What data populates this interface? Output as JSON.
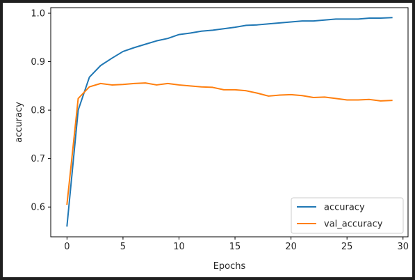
{
  "chart_data": {
    "type": "line",
    "xlabel": "Epochs",
    "ylabel": "accuracy",
    "xlim": [
      -1.45,
      30.45
    ],
    "ylim": [
      0.5385,
      1.0115
    ],
    "xticks": [
      0,
      5,
      10,
      15,
      20,
      25,
      30
    ],
    "yticks": [
      0.6,
      0.7,
      0.8,
      0.9,
      1.0
    ],
    "xtick_labels": [
      "0",
      "5",
      "10",
      "15",
      "20",
      "25",
      "30"
    ],
    "ytick_labels": [
      "0.6",
      "0.7",
      "0.8",
      "0.9",
      "1.0"
    ],
    "grid": false,
    "legend": "lower-right",
    "x": [
      0,
      1,
      2,
      3,
      4,
      5,
      6,
      7,
      8,
      9,
      10,
      11,
      12,
      13,
      14,
      15,
      16,
      17,
      18,
      19,
      20,
      21,
      22,
      23,
      24,
      25,
      26,
      27,
      28,
      29
    ],
    "series": [
      {
        "name": "accuracy",
        "color": "#1f77b4",
        "values": [
          0.561,
          0.8,
          0.868,
          0.892,
          0.907,
          0.921,
          0.929,
          0.936,
          0.943,
          0.948,
          0.956,
          0.959,
          0.963,
          0.965,
          0.968,
          0.971,
          0.975,
          0.976,
          0.978,
          0.98,
          0.982,
          0.984,
          0.984,
          0.986,
          0.988,
          0.988,
          0.988,
          0.99,
          0.99,
          0.991
        ]
      },
      {
        "name": "val_accuracy",
        "color": "#ff7f0e",
        "values": [
          0.606,
          0.824,
          0.848,
          0.855,
          0.852,
          0.853,
          0.855,
          0.856,
          0.852,
          0.855,
          0.852,
          0.85,
          0.848,
          0.847,
          0.842,
          0.842,
          0.84,
          0.835,
          0.829,
          0.831,
          0.832,
          0.83,
          0.826,
          0.827,
          0.824,
          0.821,
          0.821,
          0.822,
          0.819,
          0.82
        ]
      }
    ]
  }
}
